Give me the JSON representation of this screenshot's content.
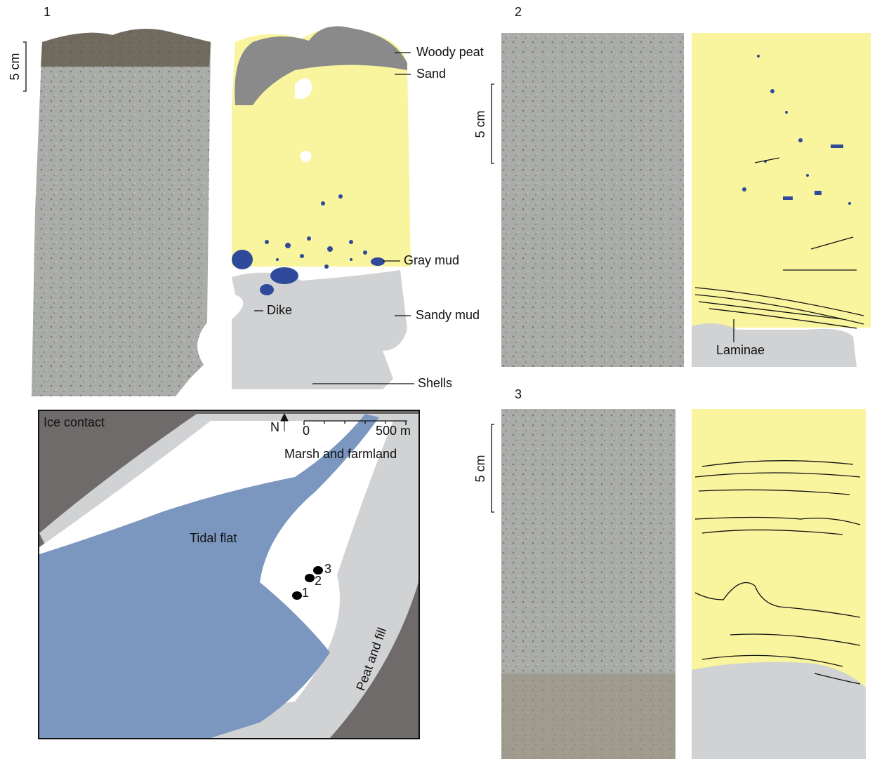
{
  "panel_1": {
    "label": "1",
    "scale_bar": "5 cm",
    "units": [
      "Woody peat",
      "Sand",
      "Gray mud",
      "Dike",
      "Sandy mud",
      "Shells"
    ]
  },
  "panel_2": {
    "label": "2",
    "scale_bar": "5 cm",
    "annotation": "Laminae"
  },
  "panel_3": {
    "label": "3",
    "scale_bar": "5 cm"
  },
  "map": {
    "labels": [
      "Ice contact",
      "Marsh and farmland",
      "Tidal flat",
      "Peat and fill"
    ],
    "north": "N",
    "scale_labels": [
      "0",
      "500 m"
    ],
    "sites": [
      "1",
      "2",
      "3"
    ]
  }
}
